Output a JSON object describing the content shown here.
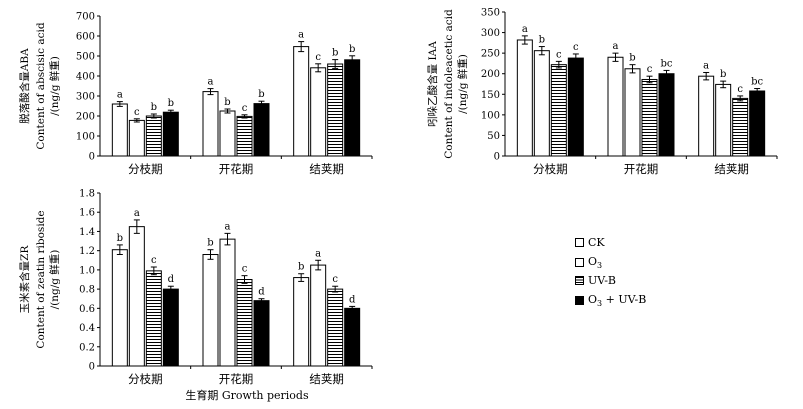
{
  "chart_data": [
    {
      "type": "bar",
      "ylabel_cn": "脱落酸含量ABA",
      "ylabel_en": "Content of abscisic acid",
      "ylabel_unit": "/(ng/g 鲜重)",
      "categories": [
        "分枝期",
        "开花期",
        "结荚期"
      ],
      "ylim": [
        0,
        700
      ],
      "yticks": [
        "0",
        "100",
        "200",
        "300",
        "400",
        "500",
        "600",
        "700"
      ],
      "series": [
        {
          "name": "CK",
          "values": [
            260,
            322,
            547
          ],
          "err": [
            12,
            15,
            25
          ],
          "letters": [
            "a",
            "a",
            "a"
          ]
        },
        {
          "name": "O3",
          "values": [
            178,
            225,
            441
          ],
          "err": [
            8,
            10,
            20
          ],
          "letters": [
            "c",
            "b",
            "c"
          ]
        },
        {
          "name": "UV-B",
          "values": [
            200,
            198,
            460
          ],
          "err": [
            10,
            8,
            22
          ],
          "letters": [
            "b",
            "c",
            "b"
          ]
        },
        {
          "name": "O3 + UV-B",
          "values": [
            219,
            262,
            481
          ],
          "err": [
            10,
            12,
            20
          ],
          "letters": [
            "b",
            "b",
            "b"
          ]
        }
      ]
    },
    {
      "type": "bar",
      "ylabel_cn": "吲哚乙酸含量 IAA",
      "ylabel_en": "Content of indoleacetic acid",
      "ylabel_unit": "/(ng/g 鲜重)",
      "categories": [
        "分枝期",
        "开花期",
        "结荚期"
      ],
      "ylim": [
        0,
        350
      ],
      "yticks": [
        "0",
        "50",
        "100",
        "150",
        "200",
        "250",
        "300",
        "350"
      ],
      "series": [
        {
          "name": "CK",
          "values": [
            282,
            240,
            194
          ],
          "err": [
            10,
            10,
            9
          ],
          "letters": [
            "a",
            "a",
            "a"
          ]
        },
        {
          "name": "O3",
          "values": [
            256,
            212,
            174
          ],
          "err": [
            10,
            10,
            8
          ],
          "letters": [
            "b",
            "b",
            "b"
          ]
        },
        {
          "name": "UV-B",
          "values": [
            222,
            186,
            140
          ],
          "err": [
            8,
            8,
            6
          ],
          "letters": [
            "c",
            "c",
            "c"
          ]
        },
        {
          "name": "O3 + UV-B",
          "values": [
            238,
            200,
            158
          ],
          "err": [
            10,
            8,
            6
          ],
          "letters": [
            "c",
            "bc",
            "bc"
          ]
        }
      ]
    },
    {
      "type": "bar",
      "ylabel_cn": "玉米素含量ZR",
      "ylabel_en": "Content of zeatin riboside",
      "ylabel_unit": "/(ng/g 鲜重)",
      "xlabel": "生育期 Growth periods",
      "categories": [
        "分枝期",
        "开花期",
        "结荚期"
      ],
      "ylim": [
        0,
        1.8
      ],
      "yticks": [
        "0",
        "0.2",
        "0.4",
        "0.6",
        "0.8",
        "1.0",
        "1.2",
        "1.4",
        "1.6",
        "1.8"
      ],
      "series": [
        {
          "name": "CK",
          "values": [
            1.21,
            1.16,
            0.92
          ],
          "err": [
            0.05,
            0.05,
            0.04
          ],
          "letters": [
            "b",
            "b",
            "b"
          ]
        },
        {
          "name": "O3",
          "values": [
            1.45,
            1.32,
            1.05
          ],
          "err": [
            0.07,
            0.06,
            0.05
          ],
          "letters": [
            "a",
            "a",
            "a"
          ]
        },
        {
          "name": "UV-B",
          "values": [
            0.99,
            0.9,
            0.8
          ],
          "err": [
            0.04,
            0.04,
            0.03
          ],
          "letters": [
            "c",
            "c",
            "c"
          ]
        },
        {
          "name": "O3 + UV-B",
          "values": [
            0.8,
            0.68,
            0.6
          ],
          "err": [
            0.03,
            0.02,
            0.02
          ],
          "letters": [
            "d",
            "d",
            "d"
          ]
        }
      ]
    }
  ],
  "legend": [
    {
      "label": "CK",
      "fill": "white"
    },
    {
      "label": "O",
      "sub": "3",
      "fill": "white"
    },
    {
      "label": "UV-B",
      "fill": "stripe"
    },
    {
      "label": "O",
      "sub": "3",
      "suffix": " + UV-B",
      "fill": "solid"
    }
  ]
}
